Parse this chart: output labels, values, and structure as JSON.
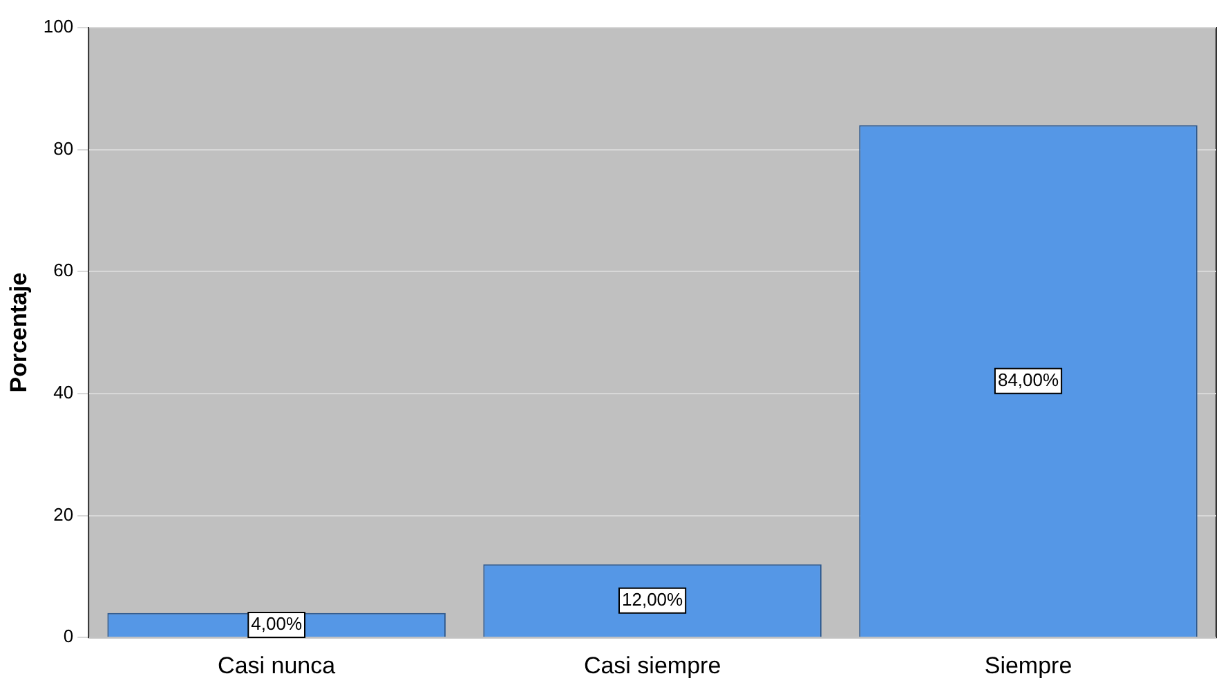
{
  "chart_data": {
    "type": "bar",
    "ylabel": "Porcentaje",
    "categories": [
      "Casi nunca",
      "Casi siempre",
      "Siempre"
    ],
    "values": [
      4,
      12,
      84
    ],
    "color": "#5597e6",
    "value_labels": [
      "4,00%",
      "12,00%",
      "84,00%"
    ],
    "ylim": [
      0,
      100
    ],
    "yticks": [
      0,
      20,
      40,
      60,
      80,
      100
    ],
    "grid": "y"
  }
}
